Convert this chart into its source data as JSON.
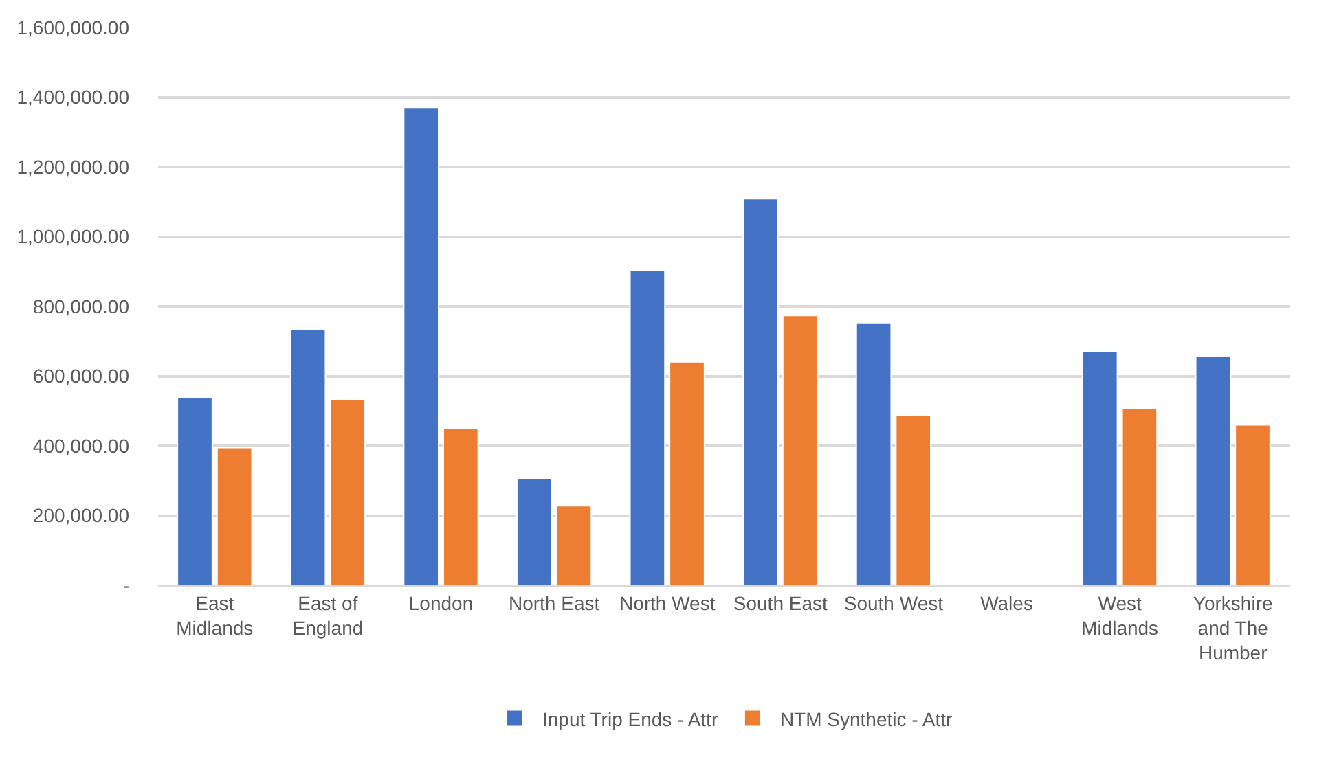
{
  "chart_data": {
    "type": "bar",
    "categories": [
      "East\nMidlands",
      "East of\nEngland",
      "London",
      "North East",
      "North West",
      "South East",
      "South West",
      "Wales",
      "West\nMidlands",
      "Yorkshire\nand The\nHumber"
    ],
    "series": [
      {
        "name": "Input Trip Ends - Attr",
        "color": "#4472c4",
        "values": [
          540000,
          733000,
          1371000,
          306000,
          903000,
          1109000,
          753000,
          null,
          671000,
          656000
        ]
      },
      {
        "name": "NTM Synthetic - Attr",
        "color": "#ed7d31",
        "values": [
          395000,
          534000,
          450000,
          228000,
          641000,
          774000,
          487000,
          null,
          508000,
          460000
        ]
      }
    ],
    "ylim": [
      0,
      1600000
    ],
    "yticks": [
      {
        "value": 0,
        "label": "-"
      },
      {
        "value": 200000,
        "label": "200,000.00"
      },
      {
        "value": 400000,
        "label": "400,000.00"
      },
      {
        "value": 600000,
        "label": "600,000.00"
      },
      {
        "value": 800000,
        "label": "800,000.00"
      },
      {
        "value": 1000000,
        "label": "1,000,000.00"
      },
      {
        "value": 1200000,
        "label": "1,200,000.00"
      },
      {
        "value": 1400000,
        "label": "1,400,000.00"
      },
      {
        "value": 1600000,
        "label": "1,600,000.00"
      }
    ],
    "grid": "y",
    "legend": "bottom"
  }
}
